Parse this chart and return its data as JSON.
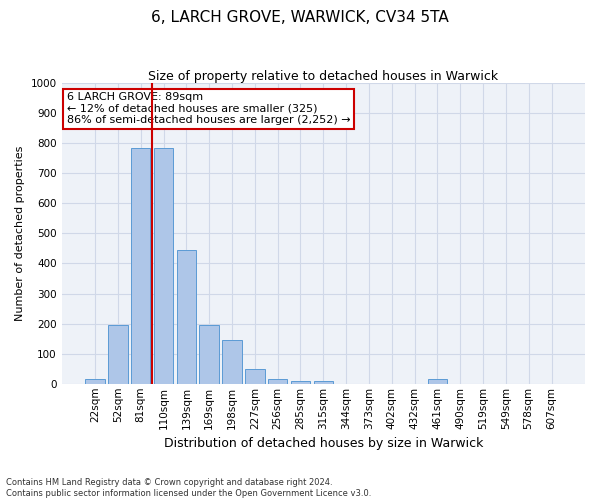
{
  "title": "6, LARCH GROVE, WARWICK, CV34 5TA",
  "subtitle": "Size of property relative to detached houses in Warwick",
  "xlabel": "Distribution of detached houses by size in Warwick",
  "ylabel": "Number of detached properties",
  "footnote1": "Contains HM Land Registry data © Crown copyright and database right 2024.",
  "footnote2": "Contains public sector information licensed under the Open Government Licence v3.0.",
  "categories": [
    "22sqm",
    "52sqm",
    "81sqm",
    "110sqm",
    "139sqm",
    "169sqm",
    "198sqm",
    "227sqm",
    "256sqm",
    "285sqm",
    "315sqm",
    "344sqm",
    "373sqm",
    "402sqm",
    "432sqm",
    "461sqm",
    "490sqm",
    "519sqm",
    "549sqm",
    "578sqm",
    "607sqm"
  ],
  "values": [
    15,
    195,
    785,
    785,
    445,
    195,
    145,
    50,
    15,
    10,
    10,
    0,
    0,
    0,
    0,
    15,
    0,
    0,
    0,
    0,
    0
  ],
  "bar_color": "#aec6e8",
  "bar_edge_color": "#5b9bd5",
  "grid_color": "#d0d8e8",
  "background_color": "#eef2f8",
  "vline_x": 2.5,
  "vline_color": "#cc0000",
  "annotation_line1": "6 LARCH GROVE: 89sqm",
  "annotation_line2": "← 12% of detached houses are smaller (325)",
  "annotation_line3": "86% of semi-detached houses are larger (2,252) →",
  "annotation_box_color": "#ffffff",
  "annotation_box_edge": "#cc0000",
  "ylim": [
    0,
    1000
  ],
  "yticks": [
    0,
    100,
    200,
    300,
    400,
    500,
    600,
    700,
    800,
    900,
    1000
  ],
  "title_fontsize": 11,
  "subtitle_fontsize": 9,
  "ylabel_fontsize": 8,
  "xlabel_fontsize": 9,
  "tick_fontsize": 7.5,
  "annotation_fontsize": 8
}
